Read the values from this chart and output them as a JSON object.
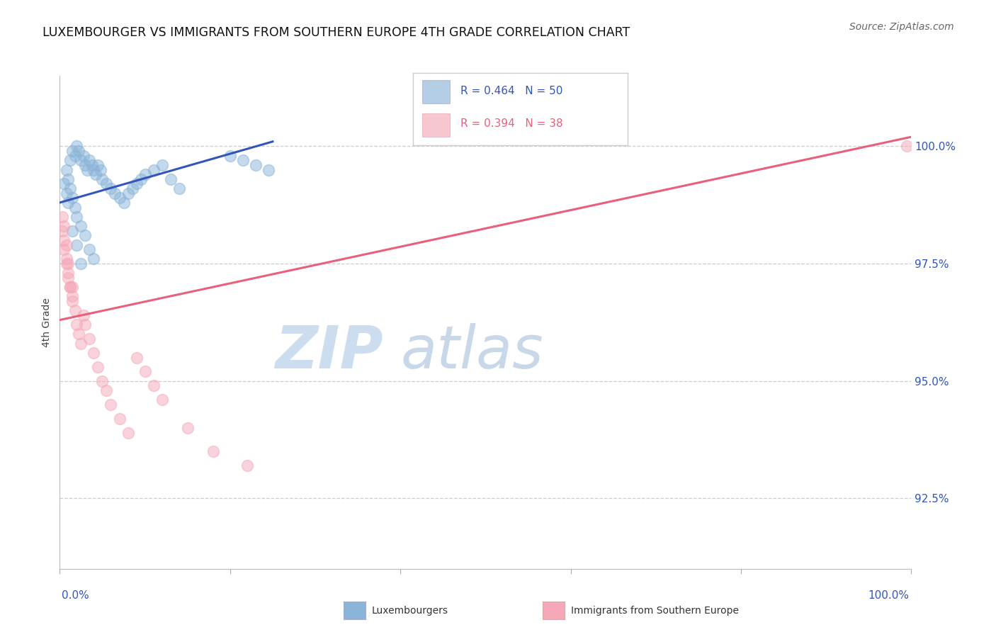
{
  "title": "LUXEMBOURGER VS IMMIGRANTS FROM SOUTHERN EUROPE 4TH GRADE CORRELATION CHART",
  "source": "Source: ZipAtlas.com",
  "ylabel": "4th Grade",
  "y_tick_labels": [
    "92.5%",
    "95.0%",
    "97.5%",
    "100.0%"
  ],
  "y_tick_values": [
    92.5,
    95.0,
    97.5,
    100.0
  ],
  "x_range": [
    0.0,
    100.0
  ],
  "y_range": [
    91.0,
    101.5
  ],
  "blue_R": 0.464,
  "blue_N": 50,
  "pink_R": 0.394,
  "pink_N": 38,
  "blue_color": "#8ab4d8",
  "pink_color": "#f4a8b8",
  "blue_line_color": "#3355bb",
  "pink_line_color": "#e8607a",
  "watermark_zip_color": "#ccddf0",
  "watermark_atlas_color": "#c8d8e8",
  "legend_label_blue": "Luxembourgers",
  "legend_label_pink": "Immigrants from Southern Europe",
  "blue_scatter_x": [
    1.2,
    1.5,
    1.8,
    2.0,
    2.2,
    2.5,
    2.8,
    3.0,
    3.2,
    3.5,
    3.8,
    4.0,
    4.2,
    4.5,
    4.8,
    5.0,
    5.5,
    6.0,
    6.5,
    7.0,
    7.5,
    8.0,
    8.5,
    9.0,
    9.5,
    10.0,
    11.0,
    12.0,
    13.0,
    14.0,
    0.8,
    1.0,
    1.2,
    1.5,
    1.8,
    2.0,
    2.5,
    3.0,
    3.5,
    4.0,
    0.5,
    0.8,
    1.0,
    1.5,
    2.0,
    2.5,
    20.0,
    21.5,
    23.0,
    24.5
  ],
  "blue_scatter_y": [
    99.7,
    99.9,
    99.8,
    100.0,
    99.9,
    99.7,
    99.8,
    99.6,
    99.5,
    99.7,
    99.6,
    99.5,
    99.4,
    99.6,
    99.5,
    99.3,
    99.2,
    99.1,
    99.0,
    98.9,
    98.8,
    99.0,
    99.1,
    99.2,
    99.3,
    99.4,
    99.5,
    99.6,
    99.3,
    99.1,
    99.5,
    99.3,
    99.1,
    98.9,
    98.7,
    98.5,
    98.3,
    98.1,
    97.8,
    97.6,
    99.2,
    99.0,
    98.8,
    98.2,
    97.9,
    97.5,
    99.8,
    99.7,
    99.6,
    99.5
  ],
  "pink_scatter_x": [
    0.3,
    0.5,
    0.8,
    1.0,
    1.2,
    1.5,
    1.8,
    2.0,
    2.2,
    2.5,
    0.3,
    0.5,
    0.8,
    1.0,
    1.2,
    1.5,
    0.5,
    0.8,
    1.0,
    1.5,
    2.8,
    3.0,
    3.5,
    4.0,
    4.5,
    5.0,
    5.5,
    6.0,
    7.0,
    8.0,
    9.0,
    10.0,
    11.0,
    12.0,
    15.0,
    18.0,
    22.0,
    99.5
  ],
  "pink_scatter_y": [
    98.2,
    97.8,
    97.5,
    97.2,
    97.0,
    96.8,
    96.5,
    96.2,
    96.0,
    95.8,
    98.5,
    98.0,
    97.6,
    97.3,
    97.0,
    96.7,
    98.3,
    97.9,
    97.5,
    97.0,
    96.4,
    96.2,
    95.9,
    95.6,
    95.3,
    95.0,
    94.8,
    94.5,
    94.2,
    93.9,
    95.5,
    95.2,
    94.9,
    94.6,
    94.0,
    93.5,
    93.2,
    100.0
  ],
  "blue_trendline_x": [
    0.0,
    25.0
  ],
  "blue_trendline_y": [
    98.8,
    100.1
  ],
  "pink_trendline_x": [
    0.0,
    100.0
  ],
  "pink_trendline_y": [
    96.3,
    100.2
  ]
}
